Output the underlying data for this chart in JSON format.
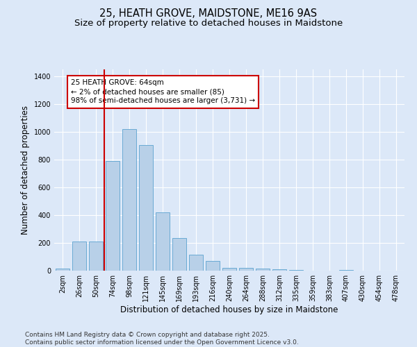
{
  "title_line1": "25, HEATH GROVE, MAIDSTONE, ME16 9AS",
  "title_line2": "Size of property relative to detached houses in Maidstone",
  "xlabel": "Distribution of detached houses by size in Maidstone",
  "ylabel": "Number of detached properties",
  "categories": [
    "2sqm",
    "26sqm",
    "50sqm",
    "74sqm",
    "98sqm",
    "121sqm",
    "145sqm",
    "169sqm",
    "193sqm",
    "216sqm",
    "240sqm",
    "264sqm",
    "288sqm",
    "312sqm",
    "335sqm",
    "359sqm",
    "383sqm",
    "407sqm",
    "430sqm",
    "454sqm",
    "478sqm"
  ],
  "values": [
    15,
    210,
    210,
    790,
    1020,
    905,
    420,
    235,
    115,
    70,
    22,
    22,
    17,
    10,
    5,
    0,
    0,
    5,
    0,
    0,
    0
  ],
  "bar_color": "#b8d0e8",
  "bar_edge_color": "#6aaad4",
  "vline_color": "#cc0000",
  "annotation_text": "25 HEATH GROVE: 64sqm\n← 2% of detached houses are smaller (85)\n98% of semi-detached houses are larger (3,731) →",
  "annotation_box_color": "#ffffff",
  "annotation_box_edge": "#cc0000",
  "ylim": [
    0,
    1450
  ],
  "yticks": [
    0,
    200,
    400,
    600,
    800,
    1000,
    1200,
    1400
  ],
  "footnote": "Contains HM Land Registry data © Crown copyright and database right 2025.\nContains public sector information licensed under the Open Government Licence v3.0.",
  "bg_color": "#dce8f8",
  "plot_bg_color": "#dce8f8",
  "title_fontsize": 10.5,
  "subtitle_fontsize": 9.5,
  "axis_label_fontsize": 8.5,
  "tick_fontsize": 7,
  "annotation_fontsize": 7.5,
  "footnote_fontsize": 6.5
}
